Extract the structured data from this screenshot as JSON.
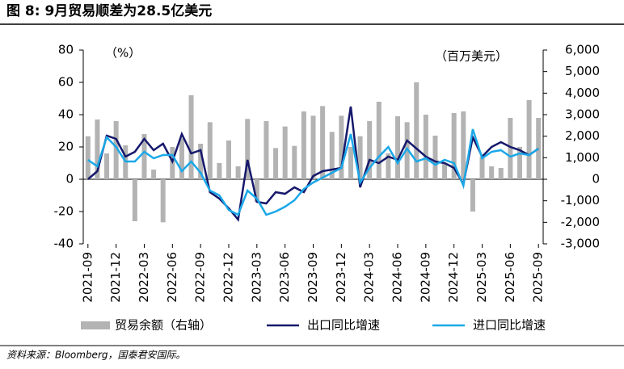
{
  "chart_data": {
    "type": "bar-line",
    "title": "图 8:  9月贸易顺差为28.5亿美元",
    "y_unit": "（%）",
    "y2_unit": "（百万美元）",
    "source": "资料来源：Bloomberg，国泰君安国际。",
    "categories": [
      "2021-09",
      null,
      null,
      "2021-12",
      null,
      null,
      "2022-03",
      null,
      null,
      "2022-06",
      null,
      null,
      "2022-09",
      null,
      null,
      "2022-12",
      null,
      null,
      "2023-03",
      null,
      null,
      "2023-06",
      null,
      null,
      "2023-09",
      null,
      null,
      "2023-12",
      null,
      null,
      "2024-03",
      null,
      null,
      "2024-06",
      null,
      null,
      "2024-09",
      null,
      null,
      "2024-12",
      null,
      null,
      "2025-03",
      null,
      null,
      "2025-06",
      null,
      null,
      "2025-09"
    ],
    "series": [
      {
        "name": "贸易余额（右轴）",
        "kind": "bar",
        "axis": "y2",
        "color": "#b3b3b3",
        "values": [
          2000,
          2775,
          1200,
          2700,
          1575,
          -1950,
          2100,
          450,
          -2000,
          1500,
          1900,
          3900,
          1650,
          2650,
          750,
          1800,
          600,
          2800,
          -1050,
          2700,
          1450,
          2450,
          1550,
          3150,
          2950,
          3400,
          2200,
          2950,
          1500,
          2000,
          2700,
          3600,
          1200,
          2925,
          2650,
          4500,
          3000,
          2025,
          750,
          3075,
          3150,
          -1500,
          1050,
          600,
          525,
          2850,
          1500,
          3675,
          2850
        ]
      },
      {
        "name": "出口同比增速",
        "kind": "line",
        "color": "#15186b",
        "values": [
          0,
          5,
          27,
          25,
          14,
          17,
          25,
          18,
          22,
          11,
          28,
          16,
          18,
          -8,
          -12,
          -18,
          -25,
          12,
          -14,
          -15,
          -8,
          -9,
          -5,
          -8,
          2,
          5,
          6,
          7,
          45,
          -5,
          12,
          10,
          14,
          12,
          24,
          19,
          14,
          11,
          10,
          7,
          -3,
          26,
          14,
          20,
          23,
          20,
          18,
          15,
          19
        ]
      },
      {
        "name": "进口同比增速",
        "kind": "line",
        "color": "#1aa8e8",
        "values": [
          12,
          8,
          26,
          20,
          11,
          11,
          17,
          13,
          15,
          15,
          5,
          11,
          4,
          -7,
          -10,
          -19,
          -22,
          -7,
          -12,
          -22,
          -20,
          -17,
          -13,
          -6,
          -2,
          1,
          4,
          7,
          28,
          -2,
          7,
          14,
          20,
          10,
          19,
          11,
          13,
          9,
          12,
          10,
          -4,
          31,
          13,
          17,
          18,
          14,
          16,
          15,
          19
        ]
      }
    ],
    "ylim": [
      -40,
      80
    ],
    "yticks": [
      -40,
      -20,
      0,
      20,
      40,
      60,
      80
    ],
    "y2lim": [
      -3000,
      6000
    ],
    "y2ticks": [
      {
        "value": -3000,
        "label": "-3,000"
      },
      {
        "value": -2000,
        "label": "-2,000"
      },
      {
        "value": -1000,
        "label": "-1,000"
      },
      0,
      {
        "value": 1000,
        "label": "1,000"
      },
      {
        "value": 2000,
        "label": "2,000"
      },
      {
        "value": 3000,
        "label": "3,000"
      },
      {
        "value": 4000,
        "label": "4,000"
      },
      {
        "value": 5000,
        "label": "5,000"
      },
      {
        "value": 6000,
        "label": "6,000"
      }
    ]
  }
}
